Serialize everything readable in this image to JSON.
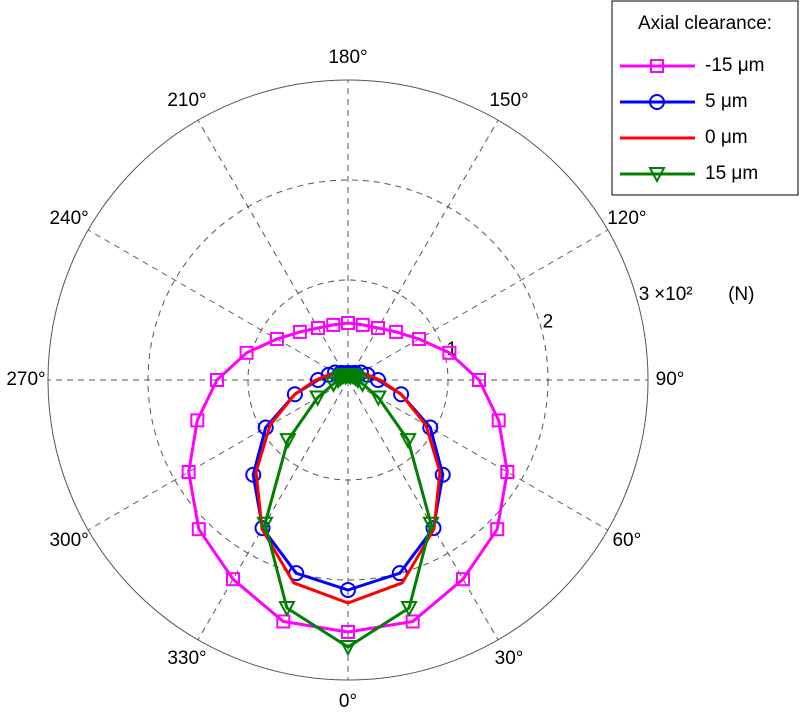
{
  "chart_data": {
    "type": "polar",
    "x": [
      0,
      15,
      30,
      45,
      60,
      75,
      90,
      105,
      120,
      135,
      150,
      165,
      180,
      195,
      210,
      225,
      240,
      255,
      270,
      285,
      300,
      315,
      330,
      345
    ],
    "xticks": [
      {
        "value": 0,
        "label": "0°"
      },
      {
        "value": 30,
        "label": "30°"
      },
      {
        "value": 60,
        "label": "60°"
      },
      {
        "value": 90,
        "label": "90°"
      },
      {
        "value": 120,
        "label": "120°"
      },
      {
        "value": 150,
        "label": "150°"
      },
      {
        "value": 180,
        "label": "180°"
      },
      {
        "value": 210,
        "label": "210°"
      },
      {
        "value": 240,
        "label": "240°"
      },
      {
        "value": 270,
        "label": "270°"
      },
      {
        "value": 300,
        "label": "300°"
      },
      {
        "value": 330,
        "label": "330°"
      }
    ],
    "ylim": [
      0,
      3
    ],
    "yticks": [
      1,
      2,
      3
    ],
    "y_scale_label": "×10²",
    "y_axis_label": "(N)",
    "legend_title": "Axial clearance:",
    "legend": "top-right",
    "grid": true,
    "series": [
      {
        "name": "-15 μm",
        "color": "#ff00ff",
        "marker": "square",
        "values": [
          2.52,
          2.5,
          2.3,
          2.11,
          1.84,
          1.56,
          1.31,
          1.05,
          0.82,
          0.68,
          0.6,
          0.57,
          0.57,
          0.57,
          0.6,
          0.68,
          0.82,
          1.05,
          1.31,
          1.56,
          1.84,
          2.11,
          2.3,
          2.5
        ]
      },
      {
        "name": "5 μm",
        "color": "#0000ff",
        "marker": "circle",
        "values": [
          2.1,
          2.0,
          1.71,
          1.34,
          0.95,
          0.55,
          0.3,
          0.2,
          0.15,
          0.1,
          0.08,
          0.07,
          0.07,
          0.07,
          0.08,
          0.1,
          0.15,
          0.2,
          0.3,
          0.55,
          0.95,
          1.34,
          1.71,
          2.0
        ]
      },
      {
        "name": "0 μm",
        "color": "#ff0000",
        "marker": "none",
        "values": [
          2.23,
          2.1,
          1.72,
          1.3,
          0.9,
          0.55,
          0.32,
          0.2,
          0.14,
          0.1,
          0.08,
          0.07,
          0.07,
          0.07,
          0.08,
          0.1,
          0.14,
          0.2,
          0.32,
          0.55,
          0.9,
          1.3,
          1.72,
          2.1
        ]
      },
      {
        "name": "15 μm",
        "color": "#008000",
        "marker": "triangle-down",
        "values": [
          2.67,
          2.36,
          1.66,
          0.85,
          0.35,
          0.15,
          0.1,
          0.08,
          0.07,
          0.06,
          0.05,
          0.05,
          0.05,
          0.05,
          0.05,
          0.06,
          0.07,
          0.08,
          0.1,
          0.15,
          0.35,
          0.85,
          1.66,
          2.36
        ]
      }
    ]
  }
}
